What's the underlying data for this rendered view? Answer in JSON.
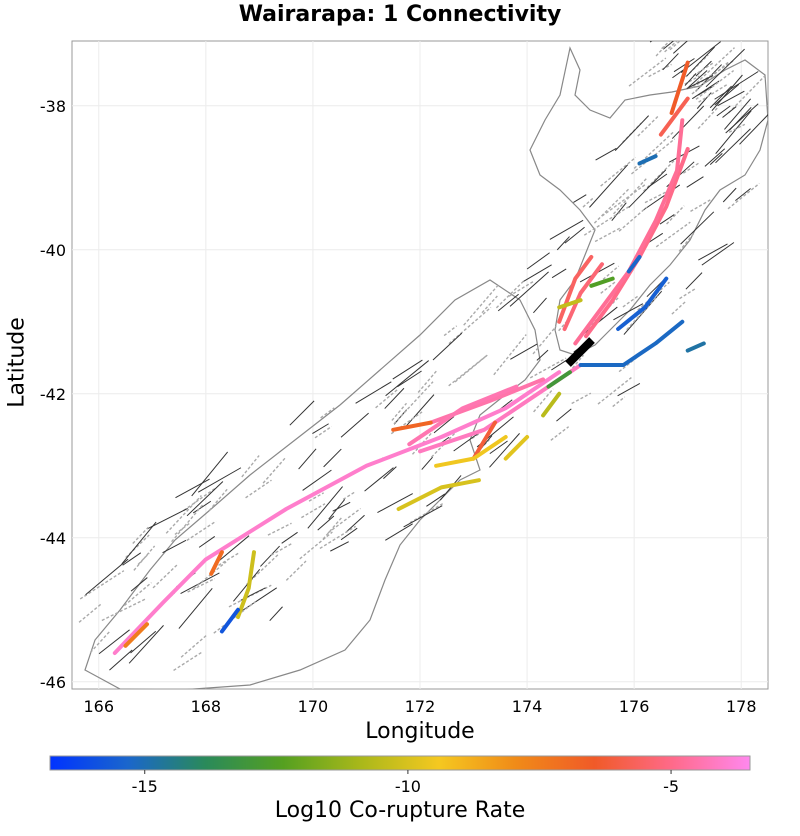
{
  "chart_data": {
    "type": "map",
    "title": "Wairarapa: 1 Connectivity",
    "xlabel": "Longitude",
    "ylabel": "Latitude",
    "xlim": [
      165.5,
      178.5
    ],
    "ylim": [
      -46.1,
      -37.1
    ],
    "x_ticks": [
      166,
      168,
      170,
      172,
      174,
      176,
      178
    ],
    "y_ticks": [
      -38,
      -40,
      -42,
      -44,
      -46
    ],
    "grid": true,
    "colorbar": {
      "title": "Log10 Co-rupture Rate",
      "range": [
        -16.8,
        -3.5
      ],
      "ticks": [
        -15,
        -10,
        -5
      ],
      "stops": [
        "#0033ff",
        "#1a66cc",
        "#2a8a5a",
        "#55a020",
        "#aab81a",
        "#f5c820",
        "#f08a18",
        "#f05a28",
        "#ff6a8a",
        "#ff88ee"
      ]
    },
    "source_fault": {
      "name": "Wairarapa",
      "color": "#000000"
    },
    "coastline_color": "#888888",
    "fault_trace_color": "#333333",
    "connected_segments": [
      {
        "value": -4.0,
        "path": [
          [
            166.3,
            -45.6
          ],
          [
            167.2,
            -44.9
          ],
          [
            168.0,
            -44.3
          ],
          [
            169.5,
            -43.6
          ],
          [
            171.0,
            -43.0
          ],
          [
            172.4,
            -42.6
          ],
          [
            173.6,
            -42.2
          ],
          [
            174.6,
            -41.7
          ]
        ]
      },
      {
        "value": -4.2,
        "path": [
          [
            172.0,
            -42.8
          ],
          [
            173.2,
            -42.5
          ],
          [
            174.2,
            -42.0
          ],
          [
            175.0,
            -41.6
          ]
        ]
      },
      {
        "value": -4.5,
        "path": [
          [
            172.2,
            -42.4
          ],
          [
            173.3,
            -42.1
          ],
          [
            174.3,
            -41.8
          ]
        ]
      },
      {
        "value": -4.4,
        "path": [
          [
            171.8,
            -42.7
          ],
          [
            172.8,
            -42.2
          ],
          [
            173.8,
            -41.9
          ]
        ]
      },
      {
        "value": -5.0,
        "path": [
          [
            175.1,
            -41.2
          ],
          [
            175.6,
            -40.7
          ],
          [
            176.1,
            -40.1
          ],
          [
            176.6,
            -39.4
          ],
          [
            177.0,
            -38.6
          ]
        ]
      },
      {
        "value": -4.8,
        "path": [
          [
            174.9,
            -41.3
          ],
          [
            175.4,
            -40.8
          ],
          [
            175.9,
            -40.3
          ],
          [
            176.4,
            -39.6
          ],
          [
            176.8,
            -38.9
          ],
          [
            176.9,
            -38.2
          ]
        ]
      },
      {
        "value": -5.3,
        "path": [
          [
            174.7,
            -41.1
          ],
          [
            175.0,
            -40.6
          ],
          [
            175.4,
            -40.2
          ]
        ]
      },
      {
        "value": -5.6,
        "path": [
          [
            174.6,
            -41.0
          ],
          [
            174.9,
            -40.4
          ],
          [
            175.2,
            -40.1
          ]
        ]
      },
      {
        "value": -5.8,
        "path": [
          [
            176.5,
            -38.4
          ],
          [
            177.0,
            -37.9
          ]
        ]
      },
      {
        "value": -6.5,
        "path": [
          [
            176.7,
            -38.1
          ],
          [
            177.0,
            -37.4
          ]
        ]
      },
      {
        "value": -6.8,
        "path": [
          [
            171.5,
            -42.5
          ],
          [
            172.2,
            -42.4
          ]
        ]
      },
      {
        "value": -7.0,
        "path": [
          [
            168.1,
            -44.5
          ],
          [
            168.3,
            -44.2
          ]
        ]
      },
      {
        "value": -7.5,
        "path": [
          [
            166.5,
            -45.5
          ],
          [
            166.9,
            -45.2
          ]
        ]
      },
      {
        "value": -6.2,
        "path": [
          [
            173.4,
            -42.4
          ],
          [
            173.0,
            -42.9
          ]
        ]
      },
      {
        "value": -9.5,
        "path": [
          [
            172.3,
            -43.0
          ],
          [
            173.0,
            -42.9
          ],
          [
            173.6,
            -42.6
          ]
        ]
      },
      {
        "value": -10.0,
        "path": [
          [
            171.6,
            -43.6
          ],
          [
            172.4,
            -43.3
          ],
          [
            173.1,
            -43.2
          ]
        ]
      },
      {
        "value": -10.2,
        "path": [
          [
            168.6,
            -45.1
          ],
          [
            168.8,
            -44.7
          ],
          [
            168.9,
            -44.2
          ]
        ]
      },
      {
        "value": -10.4,
        "path": [
          [
            174.6,
            -40.8
          ],
          [
            175.0,
            -40.7
          ]
        ]
      },
      {
        "value": -10.6,
        "path": [
          [
            174.3,
            -42.3
          ],
          [
            174.6,
            -42.0
          ]
        ]
      },
      {
        "value": -9.8,
        "path": [
          [
            174.0,
            -42.6
          ],
          [
            173.6,
            -42.9
          ]
        ]
      },
      {
        "value": -12.5,
        "path": [
          [
            175.2,
            -40.5
          ],
          [
            175.6,
            -40.4
          ]
        ]
      },
      {
        "value": -13.0,
        "path": [
          [
            174.4,
            -41.9
          ],
          [
            174.8,
            -41.7
          ]
        ]
      },
      {
        "value": -15.2,
        "path": [
          [
            175.0,
            -41.6
          ],
          [
            175.8,
            -41.6
          ],
          [
            176.4,
            -41.3
          ],
          [
            176.9,
            -41.0
          ]
        ]
      },
      {
        "value": -15.5,
        "path": [
          [
            175.7,
            -41.1
          ],
          [
            176.2,
            -40.8
          ],
          [
            176.6,
            -40.4
          ]
        ]
      },
      {
        "value": -15.8,
        "path": [
          [
            168.3,
            -45.3
          ],
          [
            168.6,
            -45.0
          ]
        ]
      },
      {
        "value": -15.0,
        "path": [
          [
            176.1,
            -38.8
          ],
          [
            176.4,
            -38.7
          ]
        ]
      },
      {
        "value": -14.8,
        "path": [
          [
            177.0,
            -41.4
          ],
          [
            177.3,
            -41.3
          ]
        ]
      },
      {
        "value": -15.3,
        "path": [
          [
            175.9,
            -40.3
          ],
          [
            176.1,
            -40.1
          ]
        ]
      }
    ]
  }
}
